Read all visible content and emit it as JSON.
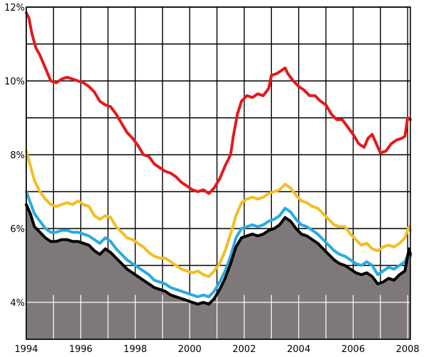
{
  "chart_data": {
    "type": "line",
    "title": "",
    "xlabel": "",
    "ylabel": "",
    "xlim": [
      1994,
      2008.1
    ],
    "ylim": [
      3.0,
      12.0
    ],
    "grid": true,
    "x_ticks": [
      {
        "value": 1994,
        "label": "1994"
      },
      {
        "value": 1996,
        "label": "1996"
      },
      {
        "value": 1998,
        "label": "1998"
      },
      {
        "value": 2000,
        "label": "2000"
      },
      {
        "value": 2002,
        "label": "2002"
      },
      {
        "value": 2004,
        "label": "2004"
      },
      {
        "value": 2006,
        "label": "2006"
      },
      {
        "value": 2008,
        "label": "2008"
      }
    ],
    "y_ticks": [
      {
        "value": 4,
        "label": "4%"
      },
      {
        "value": 6,
        "label": "6%"
      },
      {
        "value": 8,
        "label": "8%"
      },
      {
        "value": 10,
        "label": "10%"
      },
      {
        "value": 12,
        "label": "12%"
      }
    ],
    "series": [
      {
        "color": "#e41a1c",
        "fill": false,
        "points": [
          [
            1994.0,
            11.85
          ],
          [
            1994.1,
            11.7
          ],
          [
            1994.2,
            11.3
          ],
          [
            1994.35,
            10.9
          ],
          [
            1994.5,
            10.7
          ],
          [
            1994.7,
            10.35
          ],
          [
            1994.9,
            10.0
          ],
          [
            1995.1,
            9.95
          ],
          [
            1995.3,
            10.05
          ],
          [
            1995.5,
            10.1
          ],
          [
            1995.7,
            10.05
          ],
          [
            1995.9,
            10.0
          ],
          [
            1996.1,
            9.95
          ],
          [
            1996.3,
            9.85
          ],
          [
            1996.5,
            9.7
          ],
          [
            1996.7,
            9.45
          ],
          [
            1996.9,
            9.35
          ],
          [
            1997.1,
            9.3
          ],
          [
            1997.3,
            9.1
          ],
          [
            1997.5,
            8.85
          ],
          [
            1997.7,
            8.6
          ],
          [
            1997.9,
            8.45
          ],
          [
            1998.1,
            8.25
          ],
          [
            1998.3,
            8.0
          ],
          [
            1998.5,
            7.95
          ],
          [
            1998.7,
            7.75
          ],
          [
            1998.9,
            7.65
          ],
          [
            1999.1,
            7.55
          ],
          [
            1999.3,
            7.5
          ],
          [
            1999.5,
            7.4
          ],
          [
            1999.7,
            7.25
          ],
          [
            1999.9,
            7.15
          ],
          [
            2000.1,
            7.05
          ],
          [
            2000.3,
            7.0
          ],
          [
            2000.5,
            7.05
          ],
          [
            2000.7,
            6.95
          ],
          [
            2000.9,
            7.1
          ],
          [
            2001.1,
            7.35
          ],
          [
            2001.3,
            7.7
          ],
          [
            2001.5,
            8.0
          ],
          [
            2001.6,
            8.5
          ],
          [
            2001.75,
            9.1
          ],
          [
            2001.9,
            9.45
          ],
          [
            2002.1,
            9.6
          ],
          [
            2002.3,
            9.55
          ],
          [
            2002.5,
            9.65
          ],
          [
            2002.7,
            9.6
          ],
          [
            2002.9,
            9.8
          ],
          [
            2003.0,
            10.15
          ],
          [
            2003.2,
            10.2
          ],
          [
            2003.4,
            10.3
          ],
          [
            2003.5,
            10.35
          ],
          [
            2003.6,
            10.2
          ],
          [
            2003.8,
            10.0
          ],
          [
            2004.0,
            9.85
          ],
          [
            2004.2,
            9.75
          ],
          [
            2004.4,
            9.6
          ],
          [
            2004.6,
            9.6
          ],
          [
            2004.8,
            9.45
          ],
          [
            2005.0,
            9.35
          ],
          [
            2005.2,
            9.1
          ],
          [
            2005.4,
            8.95
          ],
          [
            2005.6,
            8.95
          ],
          [
            2005.8,
            8.75
          ],
          [
            2006.0,
            8.55
          ],
          [
            2006.2,
            8.3
          ],
          [
            2006.4,
            8.2
          ],
          [
            2006.55,
            8.45
          ],
          [
            2006.7,
            8.55
          ],
          [
            2006.85,
            8.3
          ],
          [
            2007.0,
            8.05
          ],
          [
            2007.2,
            8.1
          ],
          [
            2007.4,
            8.3
          ],
          [
            2007.6,
            8.4
          ],
          [
            2007.8,
            8.45
          ],
          [
            2007.9,
            8.5
          ],
          [
            2008.0,
            9.0
          ],
          [
            2008.1,
            8.95
          ]
        ]
      },
      {
        "color": "#f2be22",
        "fill": false,
        "points": [
          [
            1994.0,
            8.1
          ],
          [
            1994.15,
            7.7
          ],
          [
            1994.3,
            7.3
          ],
          [
            1994.5,
            7.0
          ],
          [
            1994.7,
            6.8
          ],
          [
            1994.9,
            6.65
          ],
          [
            1995.1,
            6.6
          ],
          [
            1995.3,
            6.65
          ],
          [
            1995.5,
            6.7
          ],
          [
            1995.7,
            6.65
          ],
          [
            1995.9,
            6.75
          ],
          [
            1996.1,
            6.65
          ],
          [
            1996.3,
            6.6
          ],
          [
            1996.5,
            6.35
          ],
          [
            1996.7,
            6.25
          ],
          [
            1996.9,
            6.35
          ],
          [
            1997.1,
            6.3
          ],
          [
            1997.3,
            6.05
          ],
          [
            1997.5,
            5.9
          ],
          [
            1997.7,
            5.75
          ],
          [
            1997.9,
            5.7
          ],
          [
            1998.1,
            5.6
          ],
          [
            1998.3,
            5.5
          ],
          [
            1998.5,
            5.35
          ],
          [
            1998.7,
            5.25
          ],
          [
            1998.9,
            5.2
          ],
          [
            1999.1,
            5.2
          ],
          [
            1999.3,
            5.1
          ],
          [
            1999.5,
            5.0
          ],
          [
            1999.7,
            4.9
          ],
          [
            1999.9,
            4.85
          ],
          [
            2000.1,
            4.8
          ],
          [
            2000.3,
            4.85
          ],
          [
            2000.5,
            4.75
          ],
          [
            2000.7,
            4.7
          ],
          [
            2000.9,
            4.85
          ],
          [
            2001.1,
            5.05
          ],
          [
            2001.3,
            5.4
          ],
          [
            2001.5,
            5.85
          ],
          [
            2001.7,
            6.35
          ],
          [
            2001.9,
            6.7
          ],
          [
            2002.1,
            6.8
          ],
          [
            2002.3,
            6.85
          ],
          [
            2002.5,
            6.8
          ],
          [
            2002.7,
            6.85
          ],
          [
            2002.9,
            6.95
          ],
          [
            2003.1,
            7.0
          ],
          [
            2003.3,
            7.05
          ],
          [
            2003.5,
            7.2
          ],
          [
            2003.7,
            7.1
          ],
          [
            2003.9,
            6.9
          ],
          [
            2004.1,
            6.75
          ],
          [
            2004.3,
            6.7
          ],
          [
            2004.5,
            6.6
          ],
          [
            2004.7,
            6.55
          ],
          [
            2004.9,
            6.4
          ],
          [
            2005.1,
            6.25
          ],
          [
            2005.3,
            6.1
          ],
          [
            2005.5,
            6.05
          ],
          [
            2005.7,
            6.05
          ],
          [
            2005.9,
            5.85
          ],
          [
            2006.1,
            5.7
          ],
          [
            2006.3,
            5.55
          ],
          [
            2006.5,
            5.6
          ],
          [
            2006.7,
            5.45
          ],
          [
            2006.9,
            5.4
          ],
          [
            2007.1,
            5.5
          ],
          [
            2007.3,
            5.55
          ],
          [
            2007.5,
            5.5
          ],
          [
            2007.7,
            5.6
          ],
          [
            2007.9,
            5.75
          ],
          [
            2008.05,
            6.05
          ],
          [
            2008.1,
            5.95
          ]
        ]
      },
      {
        "color": "#29aae1",
        "fill": false,
        "points": [
          [
            1994.0,
            7.0
          ],
          [
            1994.15,
            6.7
          ],
          [
            1994.3,
            6.4
          ],
          [
            1994.5,
            6.2
          ],
          [
            1994.7,
            6.0
          ],
          [
            1994.9,
            5.9
          ],
          [
            1995.1,
            5.9
          ],
          [
            1995.3,
            5.95
          ],
          [
            1995.5,
            5.95
          ],
          [
            1995.7,
            5.9
          ],
          [
            1995.9,
            5.9
          ],
          [
            1996.1,
            5.85
          ],
          [
            1996.3,
            5.8
          ],
          [
            1996.5,
            5.7
          ],
          [
            1996.7,
            5.6
          ],
          [
            1996.9,
            5.75
          ],
          [
            1997.1,
            5.65
          ],
          [
            1997.3,
            5.45
          ],
          [
            1997.5,
            5.3
          ],
          [
            1997.7,
            5.15
          ],
          [
            1997.9,
            5.05
          ],
          [
            1998.1,
            4.95
          ],
          [
            1998.3,
            4.85
          ],
          [
            1998.5,
            4.75
          ],
          [
            1998.7,
            4.6
          ],
          [
            1998.9,
            4.55
          ],
          [
            1999.1,
            4.5
          ],
          [
            1999.3,
            4.4
          ],
          [
            1999.5,
            4.35
          ],
          [
            1999.7,
            4.3
          ],
          [
            1999.9,
            4.25
          ],
          [
            2000.1,
            4.2
          ],
          [
            2000.3,
            4.15
          ],
          [
            2000.5,
            4.2
          ],
          [
            2000.7,
            4.15
          ],
          [
            2000.9,
            4.3
          ],
          [
            2001.1,
            4.55
          ],
          [
            2001.3,
            4.85
          ],
          [
            2001.5,
            5.25
          ],
          [
            2001.7,
            5.75
          ],
          [
            2001.9,
            6.0
          ],
          [
            2002.1,
            6.05
          ],
          [
            2002.3,
            6.1
          ],
          [
            2002.5,
            6.05
          ],
          [
            2002.7,
            6.1
          ],
          [
            2002.9,
            6.2
          ],
          [
            2003.1,
            6.25
          ],
          [
            2003.3,
            6.35
          ],
          [
            2003.5,
            6.55
          ],
          [
            2003.7,
            6.45
          ],
          [
            2003.9,
            6.25
          ],
          [
            2004.1,
            6.1
          ],
          [
            2004.3,
            6.05
          ],
          [
            2004.5,
            5.95
          ],
          [
            2004.7,
            5.85
          ],
          [
            2004.9,
            5.7
          ],
          [
            2005.1,
            5.55
          ],
          [
            2005.3,
            5.4
          ],
          [
            2005.5,
            5.3
          ],
          [
            2005.7,
            5.25
          ],
          [
            2005.9,
            5.15
          ],
          [
            2006.1,
            5.05
          ],
          [
            2006.3,
            5.0
          ],
          [
            2006.5,
            5.1
          ],
          [
            2006.7,
            5.0
          ],
          [
            2006.9,
            4.75
          ],
          [
            2007.1,
            4.85
          ],
          [
            2007.3,
            4.95
          ],
          [
            2007.5,
            4.9
          ],
          [
            2007.7,
            5.0
          ],
          [
            2007.9,
            5.1
          ],
          [
            2008.05,
            5.35
          ],
          [
            2008.1,
            5.25
          ]
        ]
      },
      {
        "color": "#000000",
        "fill": true,
        "fill_color": "#7f7878",
        "points": [
          [
            1994.0,
            6.65
          ],
          [
            1994.15,
            6.4
          ],
          [
            1994.3,
            6.05
          ],
          [
            1994.5,
            5.9
          ],
          [
            1994.7,
            5.75
          ],
          [
            1994.9,
            5.65
          ],
          [
            1995.1,
            5.65
          ],
          [
            1995.3,
            5.7
          ],
          [
            1995.5,
            5.7
          ],
          [
            1995.7,
            5.65
          ],
          [
            1995.9,
            5.65
          ],
          [
            1996.1,
            5.6
          ],
          [
            1996.3,
            5.55
          ],
          [
            1996.5,
            5.4
          ],
          [
            1996.7,
            5.3
          ],
          [
            1996.9,
            5.45
          ],
          [
            1997.1,
            5.35
          ],
          [
            1997.3,
            5.2
          ],
          [
            1997.5,
            5.05
          ],
          [
            1997.7,
            4.9
          ],
          [
            1997.9,
            4.8
          ],
          [
            1998.1,
            4.7
          ],
          [
            1998.3,
            4.6
          ],
          [
            1998.5,
            4.5
          ],
          [
            1998.7,
            4.4
          ],
          [
            1998.9,
            4.35
          ],
          [
            1999.1,
            4.3
          ],
          [
            1999.3,
            4.2
          ],
          [
            1999.5,
            4.15
          ],
          [
            1999.7,
            4.1
          ],
          [
            1999.9,
            4.05
          ],
          [
            2000.1,
            4.0
          ],
          [
            2000.3,
            3.95
          ],
          [
            2000.5,
            4.0
          ],
          [
            2000.7,
            3.95
          ],
          [
            2000.9,
            4.1
          ],
          [
            2001.1,
            4.35
          ],
          [
            2001.3,
            4.65
          ],
          [
            2001.5,
            5.05
          ],
          [
            2001.7,
            5.5
          ],
          [
            2001.9,
            5.75
          ],
          [
            2002.1,
            5.8
          ],
          [
            2002.3,
            5.85
          ],
          [
            2002.5,
            5.8
          ],
          [
            2002.7,
            5.85
          ],
          [
            2002.9,
            5.95
          ],
          [
            2003.1,
            6.0
          ],
          [
            2003.3,
            6.1
          ],
          [
            2003.5,
            6.3
          ],
          [
            2003.7,
            6.2
          ],
          [
            2003.9,
            6.0
          ],
          [
            2004.1,
            5.85
          ],
          [
            2004.3,
            5.8
          ],
          [
            2004.5,
            5.7
          ],
          [
            2004.7,
            5.6
          ],
          [
            2004.9,
            5.45
          ],
          [
            2005.1,
            5.3
          ],
          [
            2005.3,
            5.15
          ],
          [
            2005.5,
            5.05
          ],
          [
            2005.7,
            5.0
          ],
          [
            2005.9,
            4.9
          ],
          [
            2006.1,
            4.8
          ],
          [
            2006.3,
            4.75
          ],
          [
            2006.5,
            4.8
          ],
          [
            2006.7,
            4.7
          ],
          [
            2006.9,
            4.5
          ],
          [
            2007.1,
            4.55
          ],
          [
            2007.3,
            4.65
          ],
          [
            2007.5,
            4.6
          ],
          [
            2007.7,
            4.75
          ],
          [
            2007.9,
            4.85
          ],
          [
            2008.05,
            5.45
          ],
          [
            2008.1,
            5.3
          ]
        ]
      }
    ]
  }
}
